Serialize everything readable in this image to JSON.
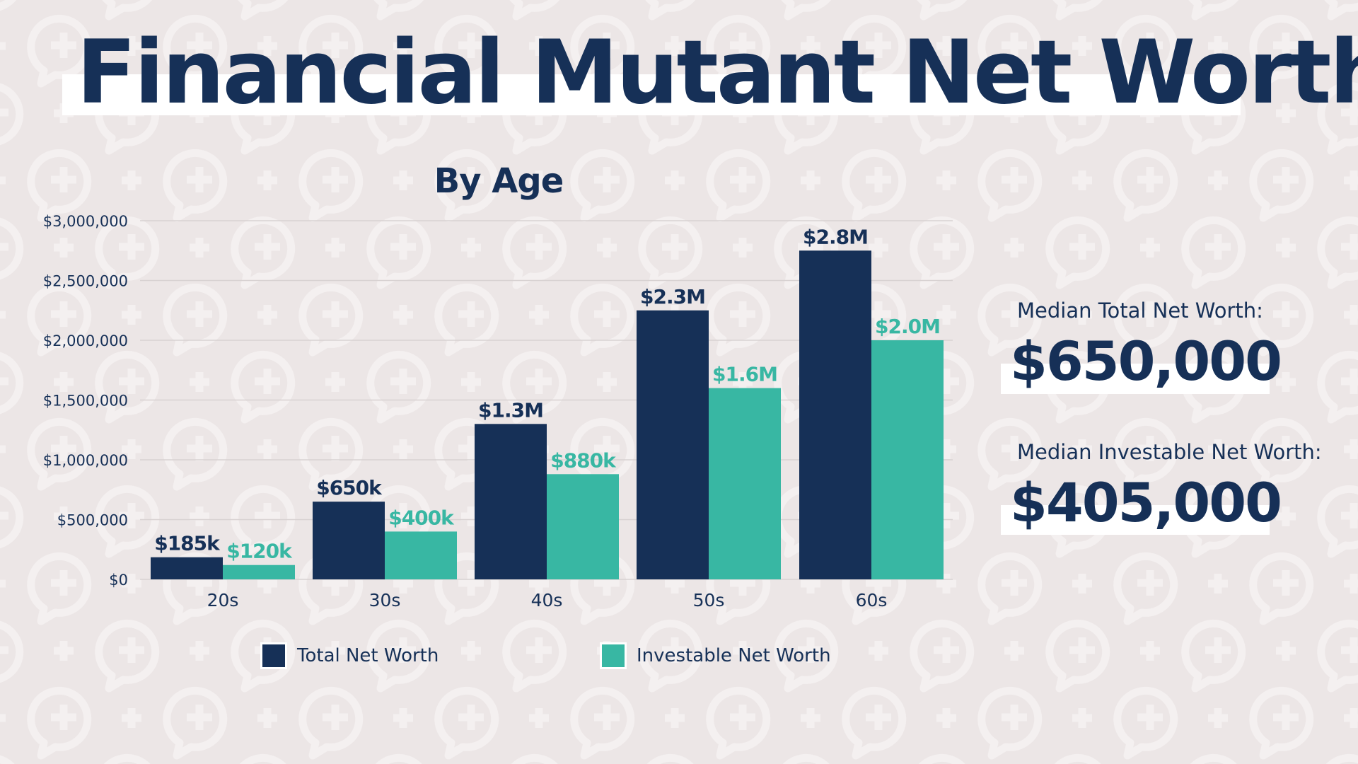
{
  "title": "Financial Mutant Net Worth",
  "colors": {
    "navy": "#163057",
    "teal": "#38b7a3",
    "background": "#ece6e6"
  },
  "chart_data": {
    "type": "bar",
    "title": "By Age",
    "xlabel": "",
    "ylabel": "",
    "categories": [
      "20s",
      "30s",
      "40s",
      "50s",
      "60s"
    ],
    "series": [
      {
        "name": "Total Net Worth",
        "color": "#163057",
        "values": [
          185000,
          650000,
          1300000,
          2250000,
          2750000
        ],
        "labels": [
          "$185k",
          "$650k",
          "$1.3M",
          "$2.3M",
          "$2.8M"
        ]
      },
      {
        "name": "Investable Net Worth",
        "color": "#38b7a3",
        "values": [
          120000,
          400000,
          880000,
          1600000,
          2000000
        ],
        "labels": [
          "$120k",
          "$400k",
          "$880k",
          "$1.6M",
          "$2.0M"
        ]
      }
    ],
    "ylim": [
      0,
      3000000
    ],
    "yticks": [
      0,
      500000,
      1000000,
      1500000,
      2000000,
      2500000,
      3000000
    ],
    "ytick_labels": [
      "$0",
      "$500,000",
      "$1,000,000",
      "$1,500,000",
      "$2,000,000",
      "$2,500,000",
      "$3,000,000"
    ],
    "grid": true,
    "legend": "bottom"
  },
  "summary": {
    "total_label": "Median Total Net Worth:",
    "total_value": "$650,000",
    "investable_label": "Median Investable Net Worth:",
    "investable_value": "$405,000"
  }
}
